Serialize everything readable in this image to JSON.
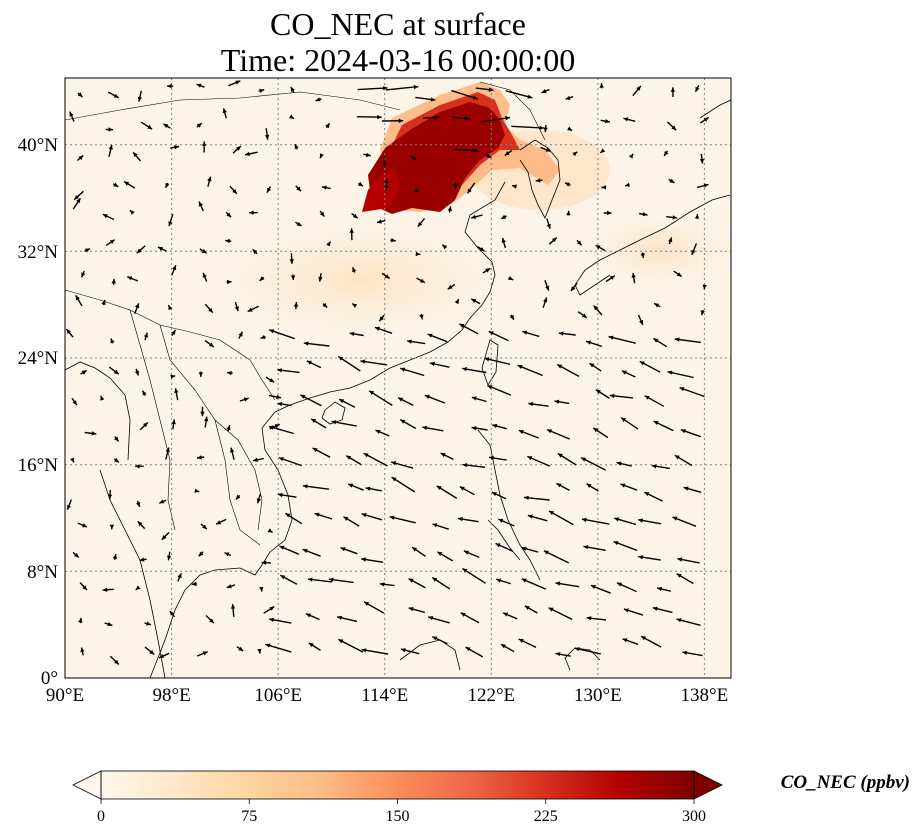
{
  "title": {
    "line1": "CO_NEC at surface",
    "line2": "Time: 2024-03-16 00:00:00"
  },
  "map": {
    "lon_range": [
      90,
      140
    ],
    "lat_range": [
      0,
      45
    ],
    "lat_ticks": [
      "0°",
      "8°N",
      "16°N",
      "24°N",
      "32°N",
      "40°N"
    ],
    "lon_ticks": [
      "90°E",
      "98°E",
      "106°E",
      "114°E",
      "122°E",
      "130°E",
      "138°E"
    ],
    "gridlines": "dotted"
  },
  "colorbar": {
    "label": "CO_NEC (ppbv)",
    "ticks": [
      "0",
      "75",
      "150",
      "225",
      "300"
    ],
    "range": [
      0,
      300
    ],
    "extend": "both",
    "colormap": "OrRd",
    "colors": [
      "#fff7ec",
      "#fee8c8",
      "#fdd49e",
      "#fdbb84",
      "#fc8d59",
      "#ef6548",
      "#d7301f",
      "#b30000",
      "#7f0000"
    ]
  },
  "field": {
    "max_region": "North China Plain / Bohai area",
    "max_value": 300
  },
  "wind_vectors": "quiver arrows, predominantly easterly/north-easterly flow over South China Sea"
}
